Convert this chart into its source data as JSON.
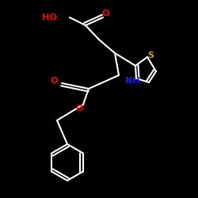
{
  "bg_color": "#000000",
  "bond_color": "#ffffff",
  "atom_colors": {
    "O": "#ff0000",
    "N": "#1a1aff",
    "S": "#ccaa00",
    "C": "#ffffff"
  },
  "lw": 1.5,
  "fs": 8.0
}
